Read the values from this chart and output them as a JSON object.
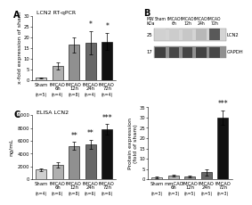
{
  "panel_A": {
    "title": "LCN2 RT-qPCR",
    "ylabel": "x-fold expression of sham",
    "ylim": [
      0,
      30
    ],
    "yticks": [
      0,
      5,
      10,
      15,
      20,
      25,
      30
    ],
    "categories": [
      "Sham",
      "tMCAO\n6h",
      "tMCAO\n12h",
      "tMCAO\n24h",
      "tMCAO\n72h"
    ],
    "n_labels": [
      "(n=5)",
      "(n=4)",
      "(n=8)",
      "(n=4)",
      "(n=4)"
    ],
    "values": [
      1.0,
      6.5,
      16.5,
      17.5,
      18.0
    ],
    "errors": [
      0.3,
      1.5,
      3.5,
      5.5,
      4.0
    ],
    "colors": [
      "#d0d0d0",
      "#b0b0b0",
      "#909090",
      "#686868",
      "#111111"
    ],
    "sig_stars": [
      "",
      "",
      "",
      "*",
      "*"
    ]
  },
  "panel_B_protein": {
    "ylabel": "Protein expression\n(fold of sham)",
    "ylim": [
      0,
      35
    ],
    "yticks": [
      0,
      5,
      10,
      15,
      20,
      25,
      30,
      35
    ],
    "categories": [
      "Sham",
      "mmCAO\n6h",
      "tMCAO\n12h",
      "tMCAO\n24h",
      "tMCAO\n72h"
    ],
    "n_labels": [
      "(n=3)",
      "(n=3)",
      "(n=5)",
      "(n=5)",
      "(n=3)"
    ],
    "values": [
      1.0,
      1.8,
      1.2,
      3.5,
      30.0
    ],
    "errors": [
      0.4,
      0.6,
      0.4,
      1.5,
      3.5
    ],
    "colors": [
      "#d0d0d0",
      "#b0b0b0",
      "#909090",
      "#686868",
      "#111111"
    ],
    "sig_stars": [
      "",
      "",
      "",
      "",
      "***"
    ]
  },
  "panel_C": {
    "title": "ELISA LCN2",
    "ylabel": "ng/mL",
    "ylim": [
      0,
      10000
    ],
    "yticks": [
      0,
      2000,
      4000,
      6000,
      8000,
      10000
    ],
    "categories": [
      "Sham",
      "tMCAO\n6h",
      "tMCAO\n12h",
      "tMCAO\n24h",
      "tMCAO\n72h"
    ],
    "n_labels": [
      "(n=4)",
      "(n=6)",
      "(n=8)",
      "(n=6)",
      "(n=6)"
    ],
    "values": [
      1500,
      2200,
      5200,
      5500,
      7800
    ],
    "errors": [
      200,
      400,
      600,
      700,
      800
    ],
    "colors": [
      "#d0d0d0",
      "#b0b0b0",
      "#909090",
      "#686868",
      "#111111"
    ],
    "sig_stars": [
      "",
      "",
      "**",
      "**",
      "***"
    ]
  },
  "wb": {
    "lane_labels": [
      "Sham",
      "tMCAO\n6h",
      "tMCAO\n12h",
      "tMCAO\n24h",
      "tMCAO\n72h"
    ],
    "mw_kda": "MW\nKDa",
    "mw_25": "25",
    "mw_17": "17",
    "row1_label": "LCN2",
    "row2_label": "GAPDH",
    "lcn2_grays": [
      0.82,
      0.8,
      0.78,
      0.72,
      0.35
    ],
    "gapdh_grays": [
      0.25,
      0.28,
      0.27,
      0.26,
      0.28
    ],
    "bg_row1": "#cccccc",
    "bg_row2": "#888888"
  },
  "background_color": "#ffffff",
  "label_fontsize": 4.5,
  "title_fontsize": 4.5,
  "tick_fontsize": 3.8,
  "star_fontsize": 5.5,
  "panel_label_fontsize": 7
}
